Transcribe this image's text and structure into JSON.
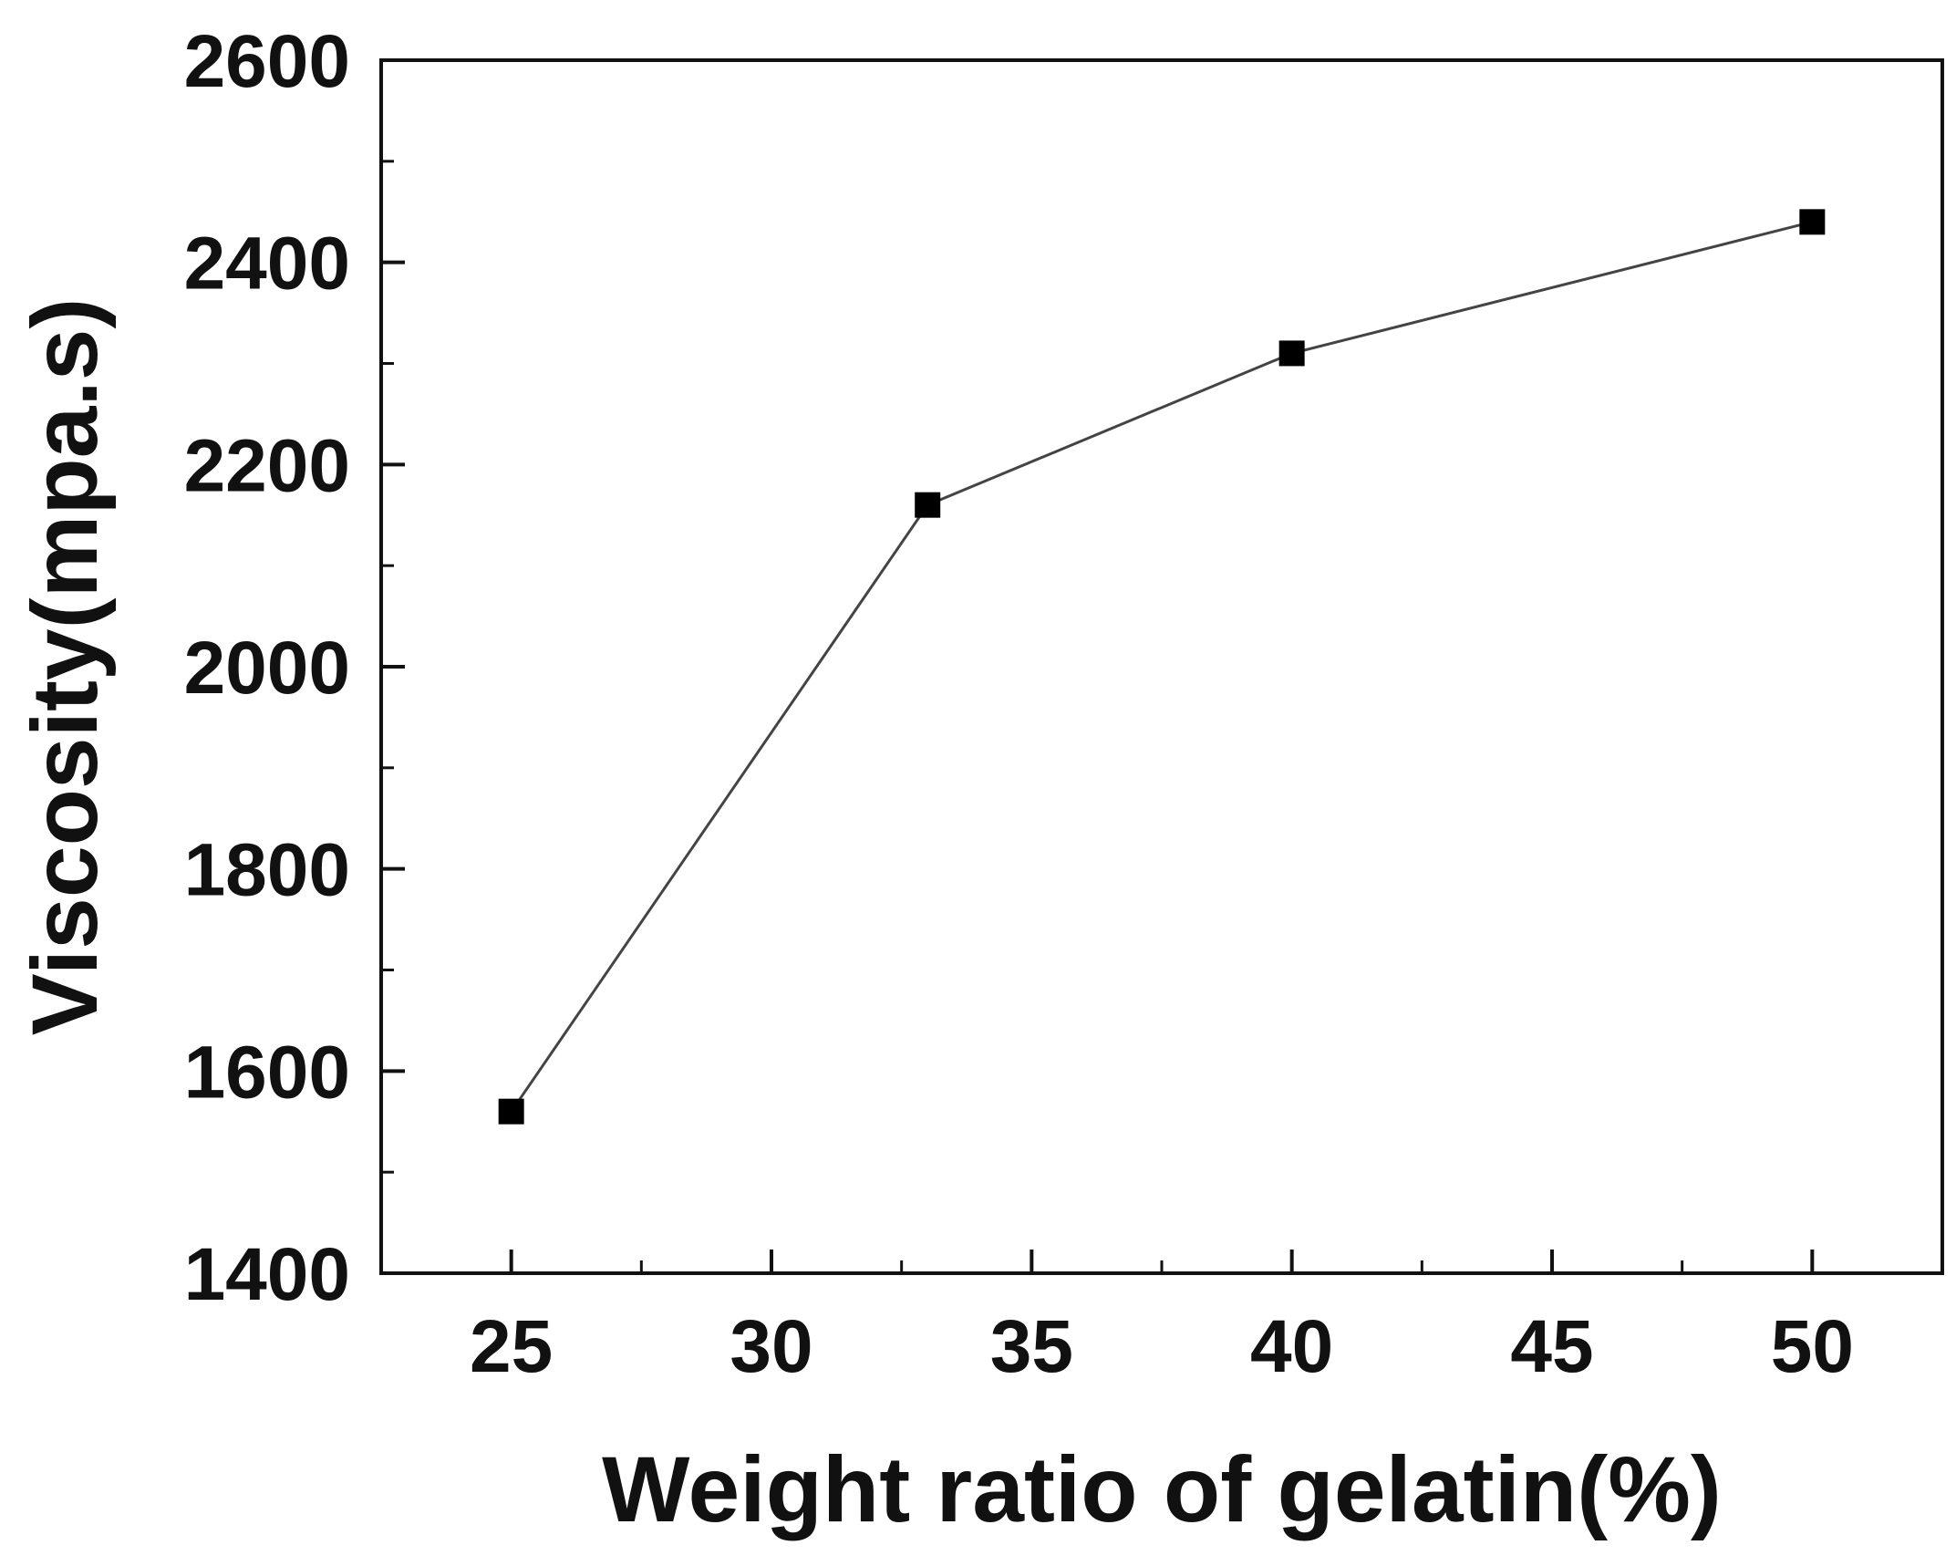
{
  "chart_data": {
    "type": "line",
    "title": "",
    "xlabel": "Weight ratio of gelatin(%)",
    "ylabel": "Viscosity(mpa.s)",
    "xlim": [
      22.5,
      52.5
    ],
    "ylim": [
      1400,
      2600
    ],
    "x_ticks": [
      25,
      30,
      35,
      40,
      45,
      50
    ],
    "x_tick_labels": [
      "25",
      "30",
      "35",
      "40",
      "45",
      "50"
    ],
    "y_ticks": [
      1400,
      1600,
      1800,
      2000,
      2200,
      2400,
      2600
    ],
    "y_tick_labels": [
      "1400",
      "1600",
      "1800",
      "2000",
      "2200",
      "2400",
      "2600"
    ],
    "grid": false,
    "legend": "none",
    "marker": "square",
    "colors": {
      "line": "#444444",
      "marker": "#000000",
      "axis": "#111111"
    },
    "series": [
      {
        "x": [
          25,
          33,
          40,
          50
        ],
        "values": [
          1560,
          2160,
          2310,
          2440
        ]
      }
    ]
  }
}
